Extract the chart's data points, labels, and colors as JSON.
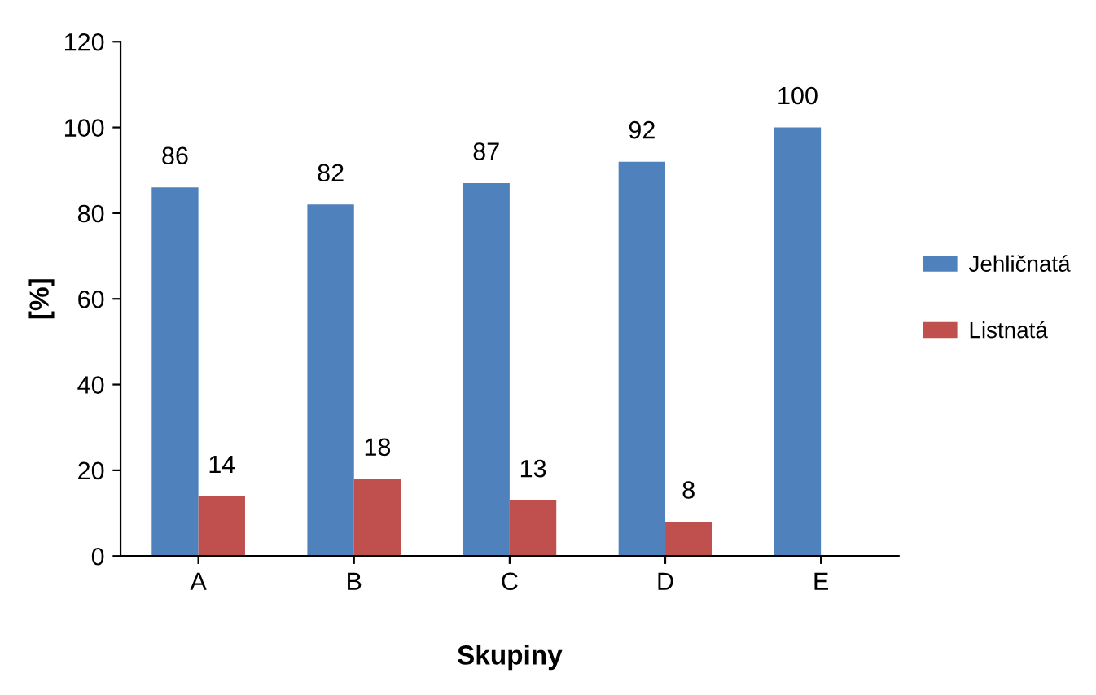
{
  "chart_data": {
    "type": "bar",
    "xlabel": "Skupiny",
    "ylabel": "[%]",
    "categories": [
      "A",
      "B",
      "C",
      "D",
      "E"
    ],
    "series": [
      {
        "name": "Jehličnatá",
        "color": "#4f81bd",
        "values": [
          86,
          82,
          87,
          92,
          100
        ]
      },
      {
        "name": "Listnatá",
        "color": "#c0504d",
        "values": [
          14,
          18,
          13,
          8,
          null
        ]
      }
    ],
    "ylim": [
      0,
      120
    ],
    "yticks": [
      0,
      20,
      40,
      60,
      80,
      100,
      120
    ],
    "grid": false,
    "legend": "right",
    "data_labels": true
  }
}
